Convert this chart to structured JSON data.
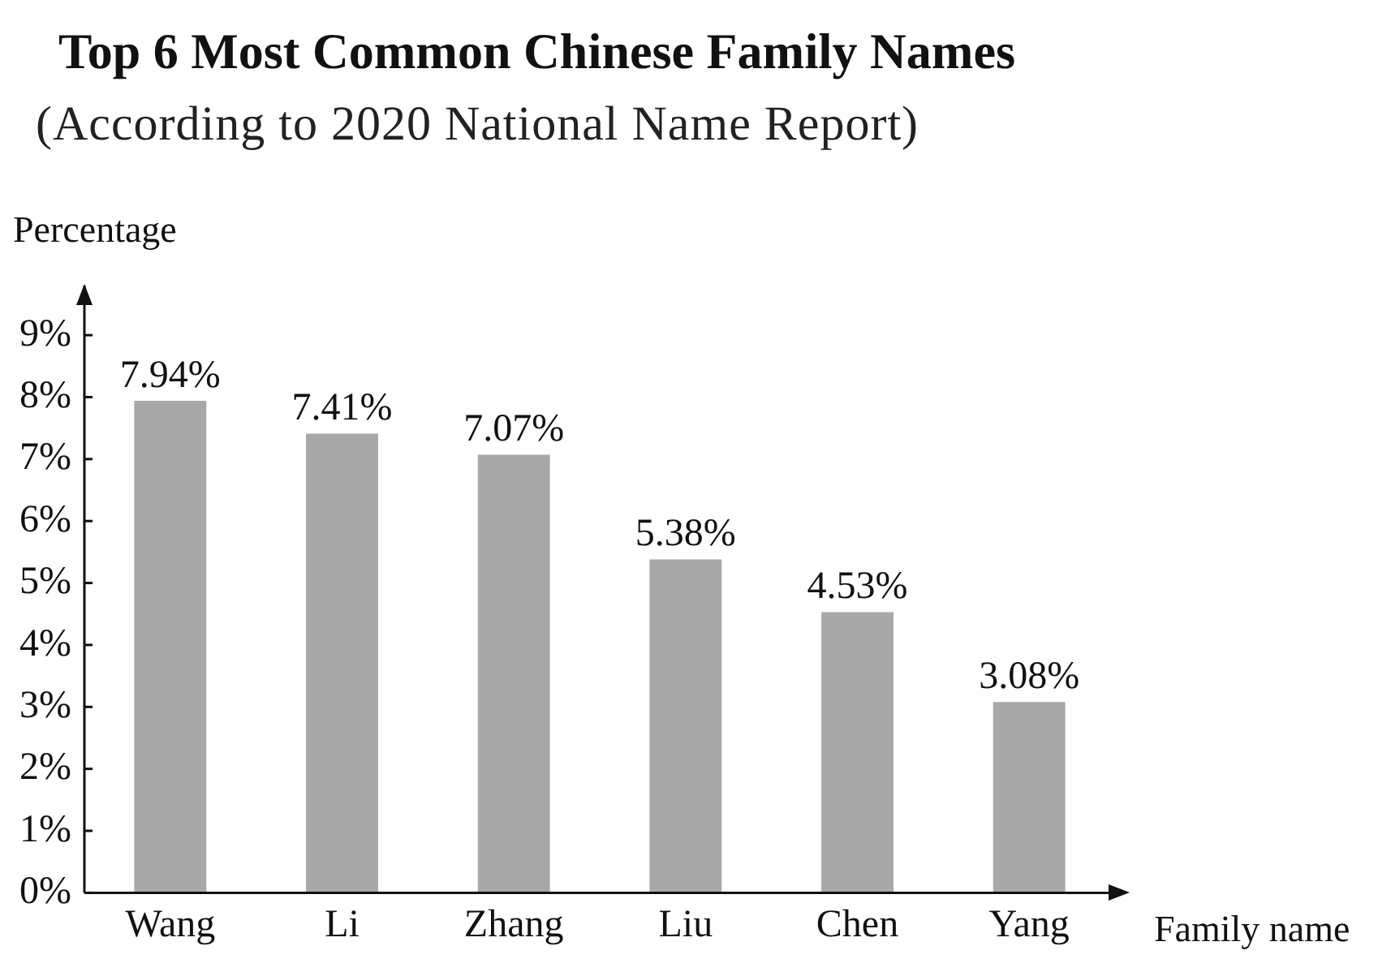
{
  "chart_data": {
    "type": "bar",
    "title": "Top 6 Most Common Chinese Family Names",
    "subtitle": "(According to 2020 National Name Report)",
    "xlabel": "Family name",
    "ylabel": "Percentage",
    "categories": [
      "Wang",
      "Li",
      "Zhang",
      "Liu",
      "Chen",
      "Yang"
    ],
    "values": [
      7.94,
      7.41,
      7.07,
      5.38,
      4.53,
      3.08
    ],
    "value_labels": [
      "7.94%",
      "7.41%",
      "7.07%",
      "5.38%",
      "4.53%",
      "3.08%"
    ],
    "color": "#a8a8a8",
    "ylim": [
      0,
      9.8
    ],
    "yticks": [
      {
        "value": 0,
        "label": "0%"
      },
      {
        "value": 1,
        "label": "1%"
      },
      {
        "value": 2,
        "label": "2%"
      },
      {
        "value": 3,
        "label": "3%"
      },
      {
        "value": 4,
        "label": "4%"
      },
      {
        "value": 5,
        "label": "5%"
      },
      {
        "value": 6,
        "label": "6%"
      },
      {
        "value": 7,
        "label": "7%"
      },
      {
        "value": 8,
        "label": "8%"
      },
      {
        "value": 9,
        "label": "9%"
      }
    ],
    "grid": false,
    "legend": false
  }
}
